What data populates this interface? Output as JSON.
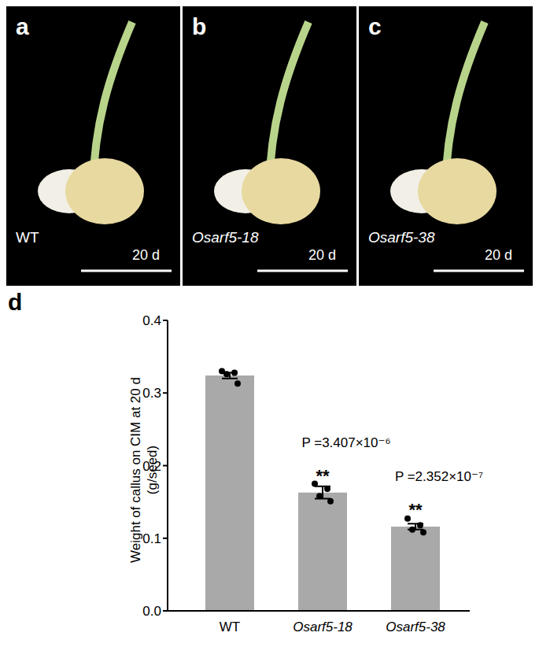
{
  "panels": [
    {
      "label": "a",
      "genotype": "WT",
      "time": "20 d"
    },
    {
      "label": "b",
      "genotype": "Osarf5-18",
      "time": "20 d"
    },
    {
      "label": "c",
      "genotype": "Osarf5-38",
      "time": "20 d"
    }
  ],
  "chart_data": {
    "type": "bar",
    "panel_label": "d",
    "categories": [
      "WT",
      "Osarf5-18",
      "Osarf5-38"
    ],
    "values": [
      0.324,
      0.163,
      0.116
    ],
    "errors": [
      0.004,
      0.0085,
      0.004
    ],
    "points": [
      [
        0.33,
        0.328,
        0.326,
        0.313
      ],
      [
        0.175,
        0.168,
        0.158,
        0.151
      ],
      [
        0.127,
        0.118,
        0.112,
        0.108
      ]
    ],
    "color": "#a9a9a9",
    "ylabel": [
      "Weight of callus on CIM at 20 d",
      "(g/seed)"
    ],
    "ylim": [
      0,
      0.4
    ],
    "yticks": [
      {
        "value": 0,
        "label": "0.0"
      },
      0.1,
      0.2,
      0.3,
      0.4
    ],
    "annotations": {
      "stars": [
        null,
        "**",
        "**"
      ],
      "p_labels": [
        null,
        "P =3.407×10⁻⁶",
        "P =2.352×10⁻⁷"
      ]
    },
    "grid": false
  }
}
